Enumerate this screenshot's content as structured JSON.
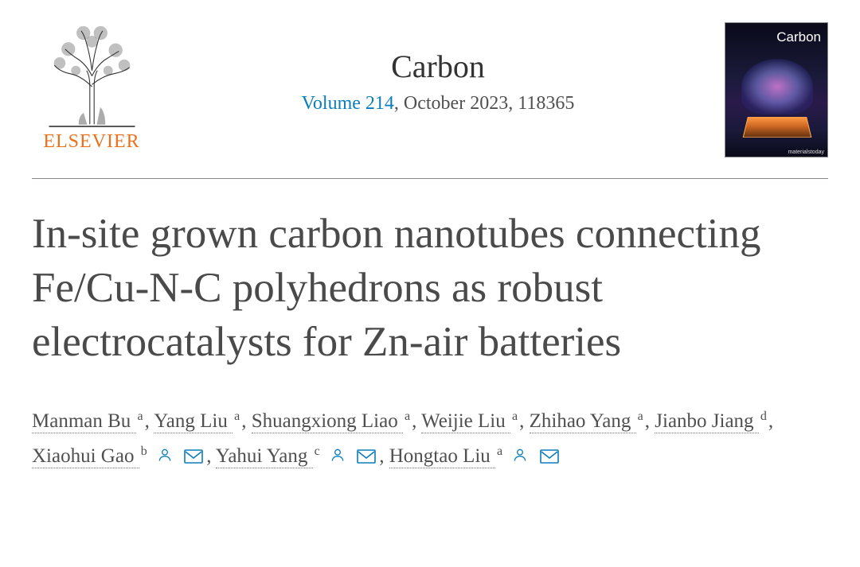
{
  "publisher": {
    "name": "ELSEVIER",
    "logo_color": "#e9711c"
  },
  "journal": {
    "name": "Carbon",
    "volume_text": "Volume 214",
    "issue_text": ", October 2023, 118365",
    "link_color": "#0c7dbb",
    "cover_title": "Carbon",
    "cover_footer": "materialstoday"
  },
  "article": {
    "title": "In-site grown carbon nanotubes connecting Fe/Cu-N-C polyhedrons as robust electrocatalysts for Zn-air batteries"
  },
  "authors": [
    {
      "name": "Manman Bu",
      "aff": "a",
      "corresponding": false
    },
    {
      "name": "Yang Liu",
      "aff": "a",
      "corresponding": false
    },
    {
      "name": "Shuangxiong Liao",
      "aff": "a",
      "corresponding": false
    },
    {
      "name": "Weijie Liu",
      "aff": "a",
      "corresponding": false
    },
    {
      "name": "Zhihao Yang",
      "aff": "a",
      "corresponding": false
    },
    {
      "name": "Jianbo Jiang",
      "aff": "d",
      "corresponding": false
    },
    {
      "name": "Xiaohui Gao",
      "aff": "b",
      "corresponding": true
    },
    {
      "name": "Yahui Yang",
      "aff": "c",
      "corresponding": true
    },
    {
      "name": "Hongtao Liu",
      "aff": "a",
      "corresponding": true
    }
  ],
  "colors": {
    "text": "#505050",
    "title": "#4a4a4a",
    "icon": "#0c7dbb"
  }
}
